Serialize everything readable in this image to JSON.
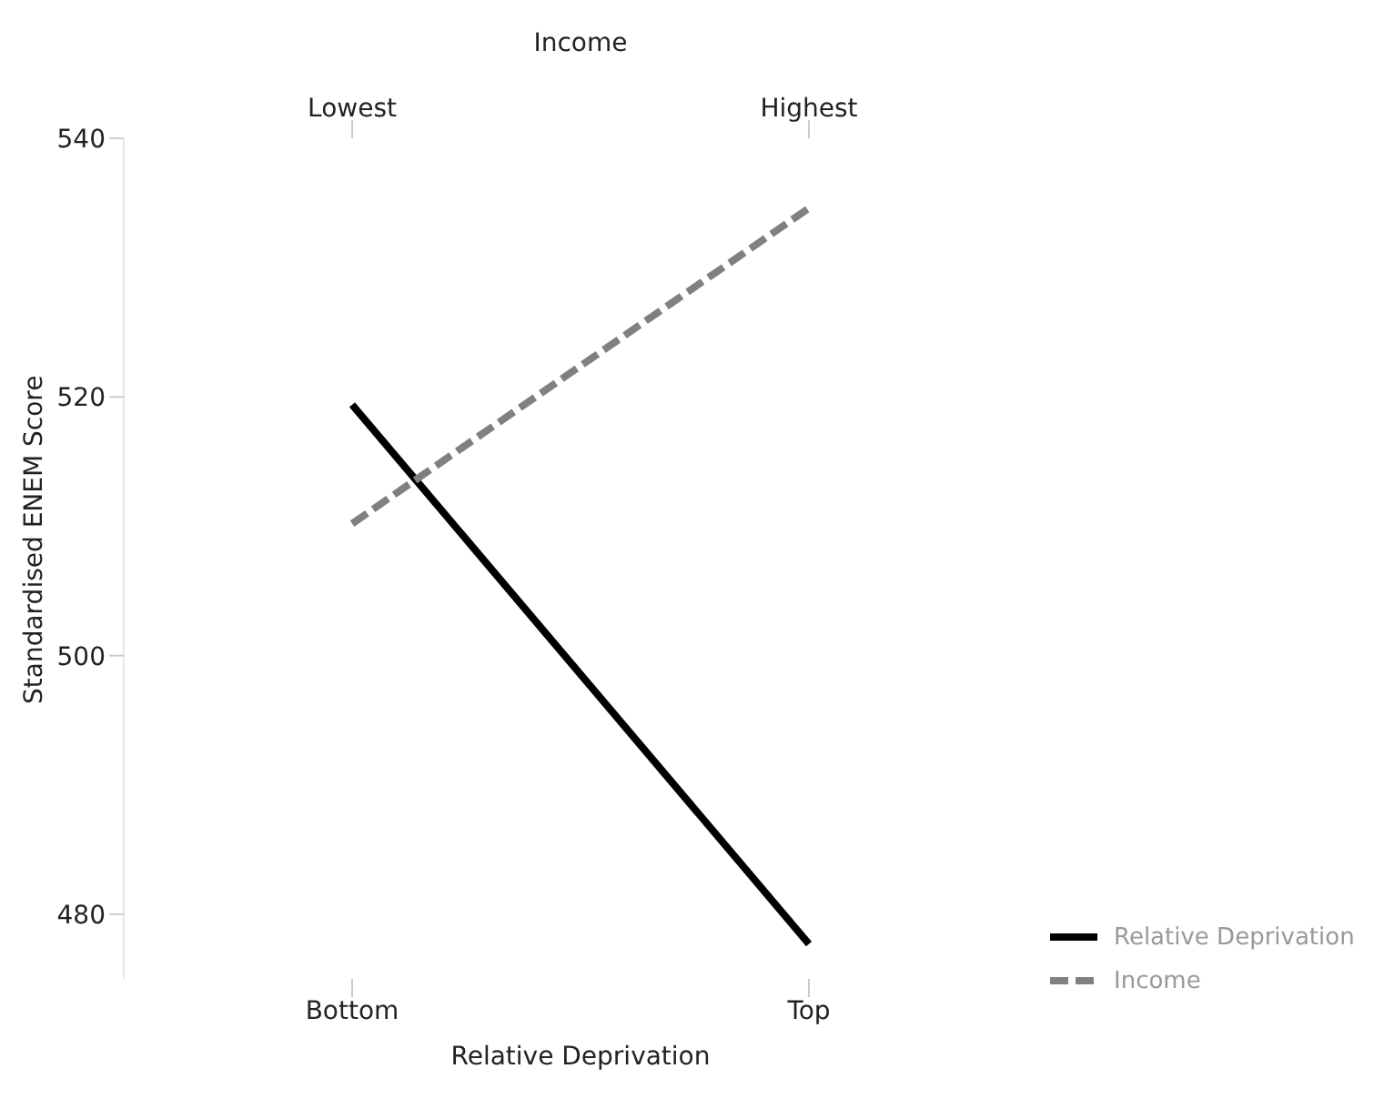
{
  "chart_data": {
    "type": "line",
    "categories": [
      "Bottom",
      "Top"
    ],
    "xlabel": "Relative Deprivation",
    "x2label": "Income",
    "annotations": [
      "Lowest",
      "Highest"
    ],
    "ylabel": "Standardised ENEM Score",
    "ylim": [
      475,
      540
    ],
    "yticks": [
      480,
      500,
      520,
      540
    ],
    "grid": false,
    "legend": "right",
    "marker": "none",
    "series": [
      {
        "name": "Relative Deprivation",
        "color": "#000000",
        "line_style": "solid",
        "values": [
          519.4,
          477.7
        ]
      },
      {
        "name": "Income",
        "color": "#808080",
        "line_style": "dashed",
        "values": [
          510.2,
          534.6
        ]
      }
    ]
  }
}
